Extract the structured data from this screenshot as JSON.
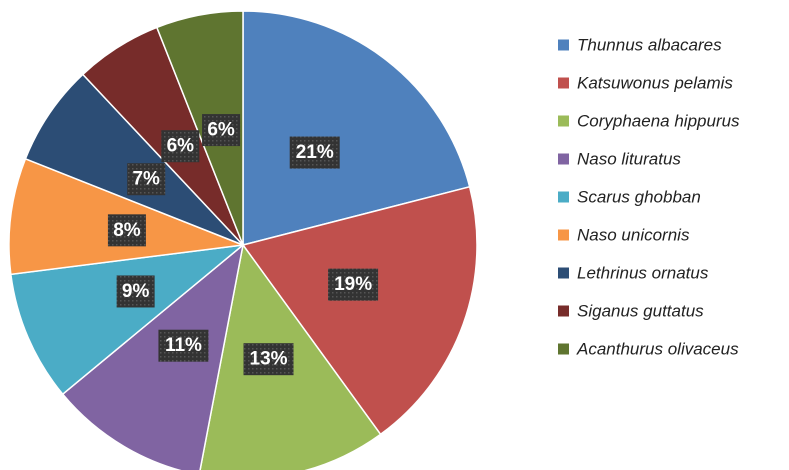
{
  "chart_data": {
    "type": "pie",
    "categories": [
      "Thunnus albacares",
      "Katsuwonus pelamis",
      "Coryphaena hippurus",
      "Naso lituratus",
      "Scarus ghobban",
      "Naso unicornis",
      "Lethrinus ornatus",
      "Siganus guttatus",
      "Acanthurus olivaceus"
    ],
    "values": [
      21,
      19,
      13,
      11,
      9,
      8,
      7,
      6,
      6
    ],
    "value_labels": [
      "21%",
      "19%",
      "13%",
      "11%",
      "9%",
      "8%",
      "7%",
      "6%",
      "6%"
    ],
    "colors": [
      "#4f81bd",
      "#c0504d",
      "#9bbb59",
      "#8064a2",
      "#4bacc6",
      "#f79646",
      "#2c4d75",
      "#772c2a",
      "#5f7530"
    ],
    "legend": "right"
  }
}
